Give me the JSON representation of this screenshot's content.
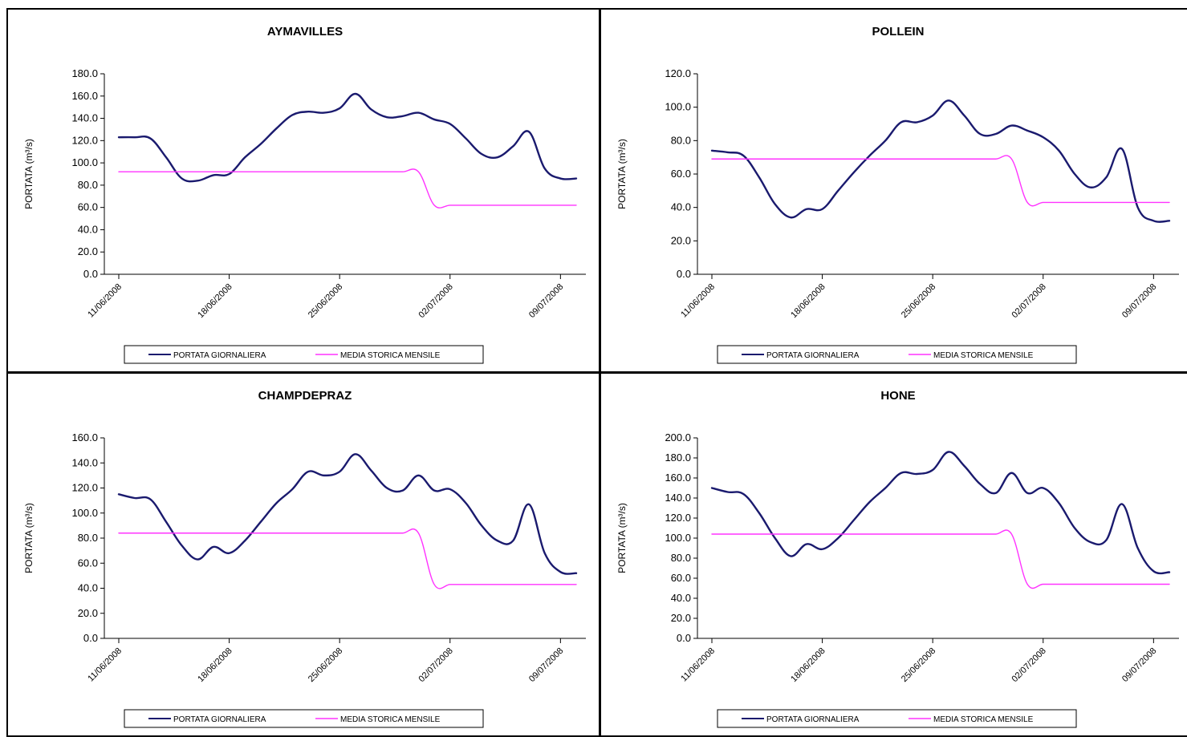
{
  "colors": {
    "daily": "#1a1a6e",
    "historic": "#ff33ff",
    "axis": "#000000",
    "background": "#ffffff"
  },
  "x_tick_labels": [
    "11/06/2008",
    "18/06/2008",
    "25/06/2008",
    "02/07/2008",
    "09/07/2008"
  ],
  "chart_data": [
    {
      "type": "line",
      "title": "AYMAVILLES",
      "ylabel": "PORTATA (m³/s)",
      "ylim": [
        0,
        180
      ],
      "ystep": 20,
      "x": [
        "11/06/2008",
        "12/06/2008",
        "13/06/2008",
        "14/06/2008",
        "15/06/2008",
        "16/06/2008",
        "17/06/2008",
        "18/06/2008",
        "19/06/2008",
        "20/06/2008",
        "21/06/2008",
        "22/06/2008",
        "23/06/2008",
        "24/06/2008",
        "25/06/2008",
        "26/06/2008",
        "27/06/2008",
        "28/06/2008",
        "29/06/2008",
        "30/06/2008",
        "01/07/2008",
        "02/07/2008",
        "03/07/2008",
        "04/07/2008",
        "05/07/2008",
        "06/07/2008",
        "07/07/2008",
        "08/07/2008",
        "09/07/2008",
        "10/07/2008"
      ],
      "series": [
        {
          "name": "PORTATA GIORNALIERA",
          "values": [
            123,
            123,
            122,
            105,
            86,
            84,
            89,
            90,
            105,
            117,
            131,
            143,
            146,
            145,
            149,
            162,
            148,
            141,
            142,
            145,
            139,
            135,
            122,
            108,
            105,
            115,
            128,
            95,
            86,
            86
          ]
        },
        {
          "name": "MEDIA STORICA MENSILE",
          "values": [
            92,
            92,
            92,
            92,
            92,
            92,
            92,
            92,
            92,
            92,
            92,
            92,
            92,
            92,
            92,
            92,
            92,
            92,
            92,
            92,
            62,
            62,
            62,
            62,
            62,
            62,
            62,
            62,
            62,
            62
          ]
        }
      ]
    },
    {
      "type": "line",
      "title": "POLLEIN",
      "ylabel": "PORTATA (m³/s)",
      "ylim": [
        0,
        120
      ],
      "ystep": 20,
      "x": [
        "11/06/2008",
        "12/06/2008",
        "13/06/2008",
        "14/06/2008",
        "15/06/2008",
        "16/06/2008",
        "17/06/2008",
        "18/06/2008",
        "19/06/2008",
        "20/06/2008",
        "21/06/2008",
        "22/06/2008",
        "23/06/2008",
        "24/06/2008",
        "25/06/2008",
        "26/06/2008",
        "27/06/2008",
        "28/06/2008",
        "29/06/2008",
        "30/06/2008",
        "01/07/2008",
        "02/07/2008",
        "03/07/2008",
        "04/07/2008",
        "05/07/2008",
        "06/07/2008",
        "07/07/2008",
        "08/07/2008",
        "09/07/2008",
        "10/07/2008"
      ],
      "series": [
        {
          "name": "PORTATA GIORNALIERA",
          "values": [
            74,
            73,
            71,
            58,
            42,
            34,
            39,
            39,
            50,
            61,
            71,
            80,
            91,
            91,
            95,
            104,
            95,
            84,
            84,
            89,
            86,
            82,
            74,
            60,
            52,
            58,
            75,
            40,
            32,
            32
          ]
        },
        {
          "name": "MEDIA STORICA MENSILE",
          "values": [
            69,
            69,
            69,
            69,
            69,
            69,
            69,
            69,
            69,
            69,
            69,
            69,
            69,
            69,
            69,
            69,
            69,
            69,
            69,
            69,
            43,
            43,
            43,
            43,
            43,
            43,
            43,
            43,
            43,
            43
          ]
        }
      ]
    },
    {
      "type": "line",
      "title": "CHAMPDEPRAZ",
      "ylabel": "PORTATA (m³/s)",
      "ylim": [
        0,
        160
      ],
      "ystep": 20,
      "x": [
        "11/06/2008",
        "12/06/2008",
        "13/06/2008",
        "14/06/2008",
        "15/06/2008",
        "16/06/2008",
        "17/06/2008",
        "18/06/2008",
        "19/06/2008",
        "20/06/2008",
        "21/06/2008",
        "22/06/2008",
        "23/06/2008",
        "24/06/2008",
        "25/06/2008",
        "26/06/2008",
        "27/06/2008",
        "28/06/2008",
        "29/06/2008",
        "30/06/2008",
        "01/07/2008",
        "02/07/2008",
        "03/07/2008",
        "04/07/2008",
        "05/07/2008",
        "06/07/2008",
        "07/07/2008",
        "08/07/2008",
        "09/07/2008",
        "10/07/2008"
      ],
      "series": [
        {
          "name": "PORTATA GIORNALIERA",
          "values": [
            115,
            112,
            111,
            93,
            74,
            63,
            73,
            68,
            78,
            93,
            108,
            119,
            133,
            130,
            133,
            147,
            134,
            120,
            118,
            130,
            118,
            119,
            108,
            90,
            78,
            78,
            107,
            68,
            53,
            52
          ]
        },
        {
          "name": "MEDIA STORICA MENSILE",
          "values": [
            84,
            84,
            84,
            84,
            84,
            84,
            84,
            84,
            84,
            84,
            84,
            84,
            84,
            84,
            84,
            84,
            84,
            84,
            84,
            84,
            43,
            43,
            43,
            43,
            43,
            43,
            43,
            43,
            43,
            43
          ]
        }
      ]
    },
    {
      "type": "line",
      "title": "HONE",
      "ylabel": "PORTATA (m³/s)",
      "ylim": [
        0,
        200
      ],
      "ystep": 20,
      "x": [
        "11/06/2008",
        "12/06/2008",
        "13/06/2008",
        "14/06/2008",
        "15/06/2008",
        "16/06/2008",
        "17/06/2008",
        "18/06/2008",
        "19/06/2008",
        "20/06/2008",
        "21/06/2008",
        "22/06/2008",
        "23/06/2008",
        "24/06/2008",
        "25/06/2008",
        "26/06/2008",
        "27/06/2008",
        "28/06/2008",
        "29/06/2008",
        "30/06/2008",
        "01/07/2008",
        "02/07/2008",
        "03/07/2008",
        "04/07/2008",
        "05/07/2008",
        "06/07/2008",
        "07/07/2008",
        "08/07/2008",
        "09/07/2008",
        "10/07/2008"
      ],
      "series": [
        {
          "name": "PORTATA GIORNALIERA",
          "values": [
            150,
            146,
            144,
            125,
            100,
            82,
            94,
            89,
            100,
            118,
            136,
            150,
            165,
            164,
            168,
            186,
            172,
            154,
            145,
            165,
            145,
            150,
            135,
            110,
            96,
            98,
            134,
            90,
            67,
            66
          ]
        },
        {
          "name": "MEDIA STORICA MENSILE",
          "values": [
            104,
            104,
            104,
            104,
            104,
            104,
            104,
            104,
            104,
            104,
            104,
            104,
            104,
            104,
            104,
            104,
            104,
            104,
            104,
            104,
            54,
            54,
            54,
            54,
            54,
            54,
            54,
            54,
            54,
            54
          ]
        }
      ]
    }
  ]
}
